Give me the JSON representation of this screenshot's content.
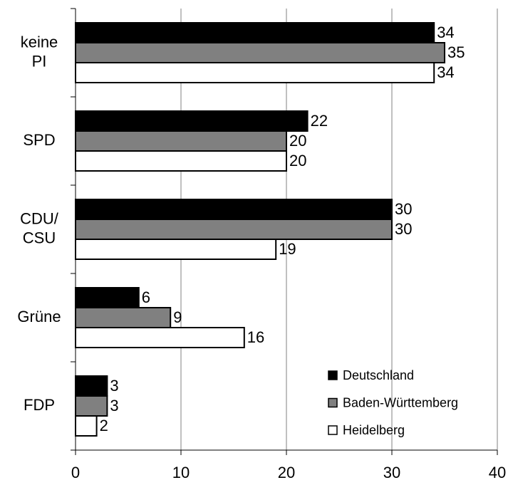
{
  "chart_data": {
    "type": "bar",
    "orientation": "horizontal",
    "categories": [
      "keine\nPI",
      "SPD",
      "CDU/\nCSU",
      "Grüne",
      "FDP"
    ],
    "series": [
      {
        "name": "Deutschland",
        "color": "#000000",
        "values": [
          34,
          22,
          30,
          6,
          3
        ]
      },
      {
        "name": "Baden-Württemberg",
        "color": "#808080",
        "values": [
          35,
          20,
          30,
          9,
          3
        ]
      },
      {
        "name": "Heidelberg",
        "color": "#ffffff",
        "values": [
          34,
          20,
          19,
          16,
          2
        ]
      }
    ],
    "xlim": [
      0,
      40
    ],
    "xticks": [
      0,
      10,
      20,
      30,
      40
    ],
    "grid": true,
    "legend": "lower right"
  }
}
